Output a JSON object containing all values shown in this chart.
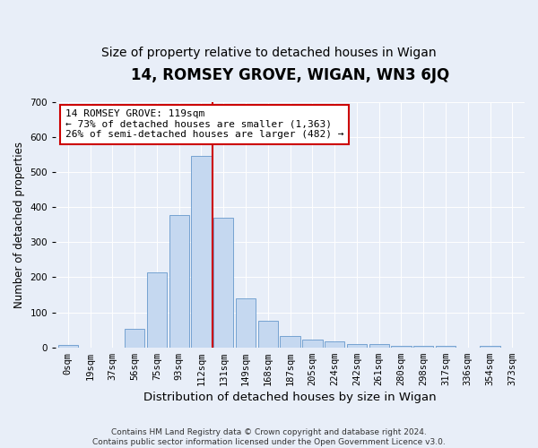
{
  "title": "14, ROMSEY GROVE, WIGAN, WN3 6JQ",
  "subtitle": "Size of property relative to detached houses in Wigan",
  "xlabel": "Distribution of detached houses by size in Wigan",
  "ylabel": "Number of detached properties",
  "bar_labels": [
    "0sqm",
    "19sqm",
    "37sqm",
    "56sqm",
    "75sqm",
    "93sqm",
    "112sqm",
    "131sqm",
    "149sqm",
    "168sqm",
    "187sqm",
    "205sqm",
    "224sqm",
    "242sqm",
    "261sqm",
    "280sqm",
    "298sqm",
    "317sqm",
    "336sqm",
    "354sqm",
    "373sqm"
  ],
  "bar_values": [
    7,
    0,
    0,
    52,
    215,
    377,
    547,
    370,
    140,
    77,
    33,
    22,
    18,
    10,
    10,
    5,
    5,
    5,
    0,
    5,
    0
  ],
  "bar_color": "#c5d8f0",
  "bar_edge_color": "#6699cc",
  "vline_x_index": 6,
  "vline_color": "#cc0000",
  "annotation_text": "14 ROMSEY GROVE: 119sqm\n← 73% of detached houses are smaller (1,363)\n26% of semi-detached houses are larger (482) →",
  "annotation_box_color": "#ffffff",
  "annotation_box_edge": "#cc0000",
  "ylim": [
    0,
    700
  ],
  "yticks": [
    0,
    100,
    200,
    300,
    400,
    500,
    600,
    700
  ],
  "background_color": "#e8eef8",
  "axes_background": "#e8eef8",
  "footer": "Contains HM Land Registry data © Crown copyright and database right 2024.\nContains public sector information licensed under the Open Government Licence v3.0.",
  "title_fontsize": 12,
  "subtitle_fontsize": 10,
  "xlabel_fontsize": 9.5,
  "ylabel_fontsize": 8.5,
  "tick_fontsize": 7.5,
  "annotation_fontsize": 8,
  "footer_fontsize": 6.5
}
